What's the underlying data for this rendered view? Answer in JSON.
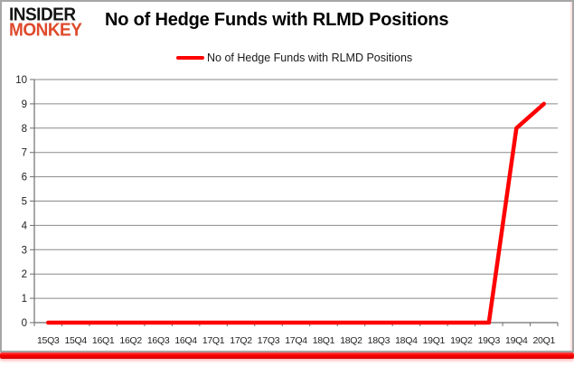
{
  "logo": {
    "line1": "INSIDER",
    "line2": "MONKEY"
  },
  "header": {
    "title": "No of Hedge Funds with RLMD Positions"
  },
  "legend": {
    "label": "No of Hedge Funds with RLMD Positions"
  },
  "colors": {
    "line": "#ff0000",
    "logo_red": "#de4a2c",
    "grid": "#8a8a8a",
    "axis": "#6e6e6e",
    "tick_label": "#1f1f1f",
    "bottom_bar": "#ff0000",
    "card_border": "#a6a6a6"
  },
  "chart_data": {
    "type": "line",
    "title": "No of Hedge Funds with RLMD Positions",
    "categories": [
      "15Q3",
      "15Q4",
      "16Q1",
      "16Q2",
      "16Q3",
      "16Q4",
      "17Q1",
      "17Q2",
      "17Q3",
      "17Q4",
      "18Q1",
      "18Q2",
      "18Q3",
      "18Q4",
      "19Q1",
      "19Q2",
      "19Q3",
      "19Q4",
      "20Q1"
    ],
    "series": [
      {
        "name": "No of Hedge Funds with RLMD Positions",
        "values": [
          0,
          0,
          0,
          0,
          0,
          0,
          0,
          0,
          0,
          0,
          0,
          0,
          0,
          0,
          0,
          0,
          0,
          8,
          9
        ]
      }
    ],
    "xlabel": "",
    "ylabel": "",
    "ylim": [
      0,
      10
    ],
    "ytick_step": 1,
    "grid": "horizontal",
    "legend_position": "top"
  }
}
